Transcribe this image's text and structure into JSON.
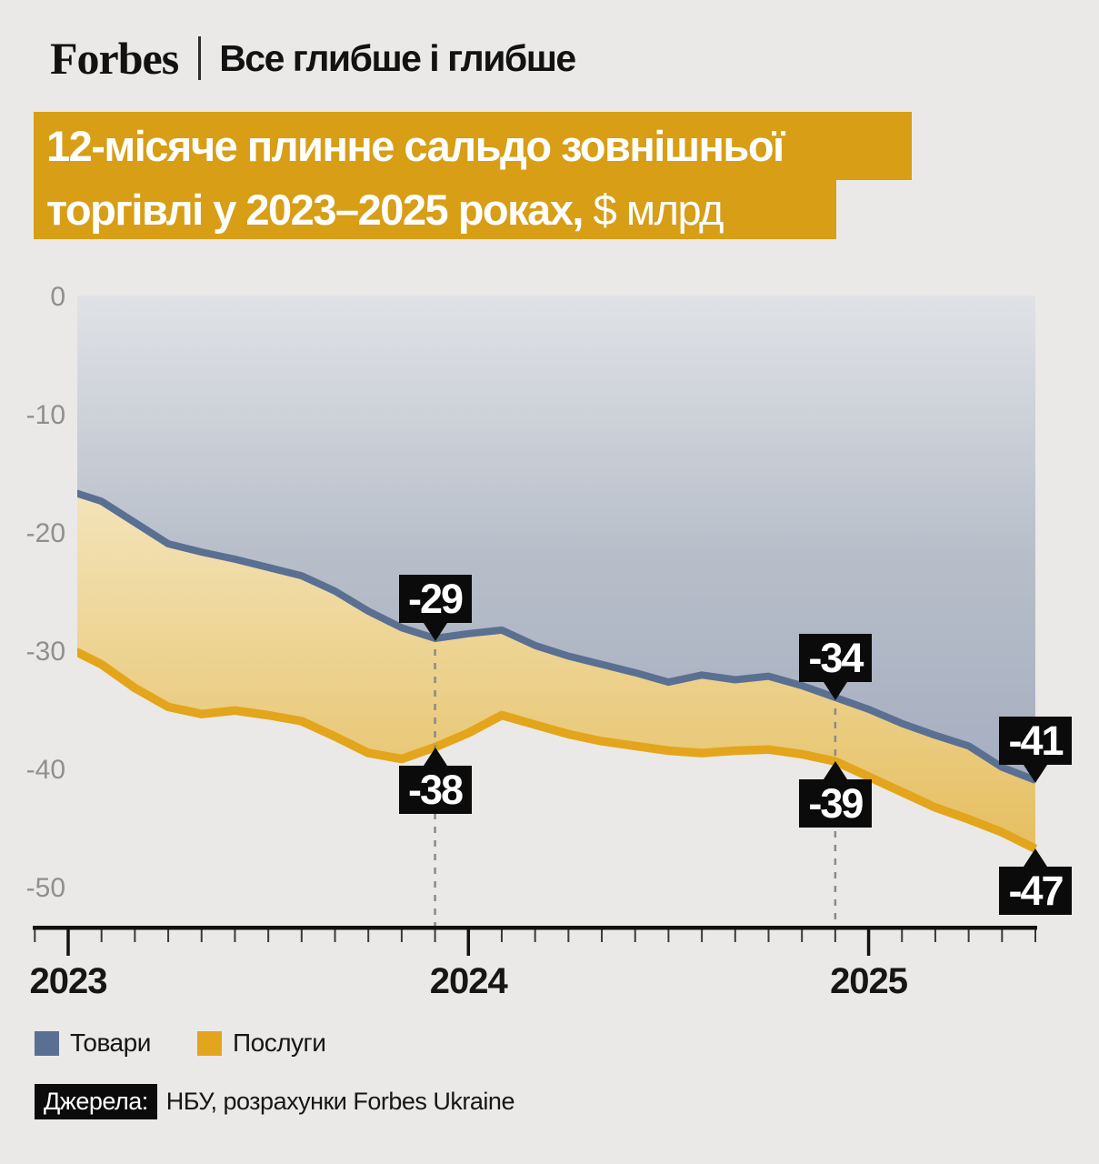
{
  "page": {
    "background": "#eae9e7"
  },
  "header": {
    "brand": "Forbes",
    "tagline": "Все глибше і глибше"
  },
  "title": {
    "line1": "12-місяче плинне сальдо зовнішньої",
    "line2_strong": "торгівлі у 2023–2025 роках,",
    "line2_regular": " $ млрд",
    "background": "#d79e16",
    "text_color": "#ffffff"
  },
  "chart_data": {
    "type": "area",
    "title": "12-місяче плинне сальдо зовнішньої торгівлі у 2023–2025 роках, $ млрд",
    "x": [
      "2023-01",
      "2023-02",
      "2023-03",
      "2023-04",
      "2023-05",
      "2023-06",
      "2023-07",
      "2023-08",
      "2023-09",
      "2023-10",
      "2023-11",
      "2023-12",
      "2024-01",
      "2024-02",
      "2024-03",
      "2024-04",
      "2024-05",
      "2024-06",
      "2024-07",
      "2024-08",
      "2024-09",
      "2024-10",
      "2024-11",
      "2024-12",
      "2025-01",
      "2025-02",
      "2025-03",
      "2025-04",
      "2025-05",
      "2025-06"
    ],
    "x_tick_labels": [
      "2023",
      "2024",
      "2025"
    ],
    "y_ticks": [
      0,
      -10,
      -20,
      -30,
      -40,
      -50
    ],
    "ylim": [
      -53,
      0
    ],
    "grid": false,
    "legend_position": "bottom-left",
    "series": [
      {
        "name": "Товари",
        "color": "#5a7092",
        "values": [
          -16.5,
          -17.4,
          -19.2,
          -21.0,
          -21.7,
          -22.3,
          -23.0,
          -23.7,
          -25.0,
          -26.7,
          -28.1,
          -29.0,
          -28.6,
          -28.3,
          -29.6,
          -30.5,
          -31.2,
          -31.9,
          -32.7,
          -32.1,
          -32.5,
          -32.2,
          -33.0,
          -34.0,
          -35.0,
          -36.2,
          -37.2,
          -38.1,
          -39.9,
          -41.0
        ]
      },
      {
        "name": "Послуги",
        "color": "#e3a51b",
        "values": [
          -29.8,
          -31.2,
          -33.2,
          -34.8,
          -35.4,
          -35.1,
          -35.5,
          -36.0,
          -37.3,
          -38.7,
          -39.2,
          -38.2,
          -37.0,
          -35.5,
          -36.3,
          -37.1,
          -37.7,
          -38.1,
          -38.5,
          -38.7,
          -38.5,
          -38.4,
          -38.8,
          -39.4,
          -40.7,
          -42.0,
          -43.3,
          -44.3,
          -45.4,
          -46.8
        ]
      }
    ],
    "annotations": [
      {
        "label": "-29",
        "series": 0,
        "x_index": 11,
        "placement": "above"
      },
      {
        "label": "-38",
        "series": 1,
        "x_index": 11,
        "placement": "below"
      },
      {
        "label": "-34",
        "series": 0,
        "x_index": 23,
        "placement": "above"
      },
      {
        "label": "-39",
        "series": 1,
        "x_index": 23,
        "placement": "below"
      },
      {
        "label": "-41",
        "series": 0,
        "x_index": 29,
        "placement": "above"
      },
      {
        "label": "-47",
        "series": 1,
        "x_index": 29,
        "placement": "below"
      }
    ],
    "dashed_guides_x_index": [
      11,
      23
    ],
    "colors": {
      "area_top_gradient": [
        "#e0e2e6",
        "#b7bec9",
        "#a3acbf"
      ],
      "area_mid_gradient": [
        "#fdf8ea",
        "#efd9a0",
        "#e4ba55"
      ],
      "axis": "#111111",
      "y_tick_label": "#8f8f8f",
      "x_tick_label": "#161616",
      "annotation_bg": "#0b0b0b",
      "dashed_guide": "#8a8a8a"
    }
  },
  "legend": {
    "items": [
      {
        "label": "Товари",
        "color": "#5a7092"
      },
      {
        "label": "Послуги",
        "color": "#e3a51b"
      }
    ]
  },
  "source": {
    "prefix": "Джерела:",
    "text": "НБУ, розрахунки Forbes Ukraine"
  }
}
